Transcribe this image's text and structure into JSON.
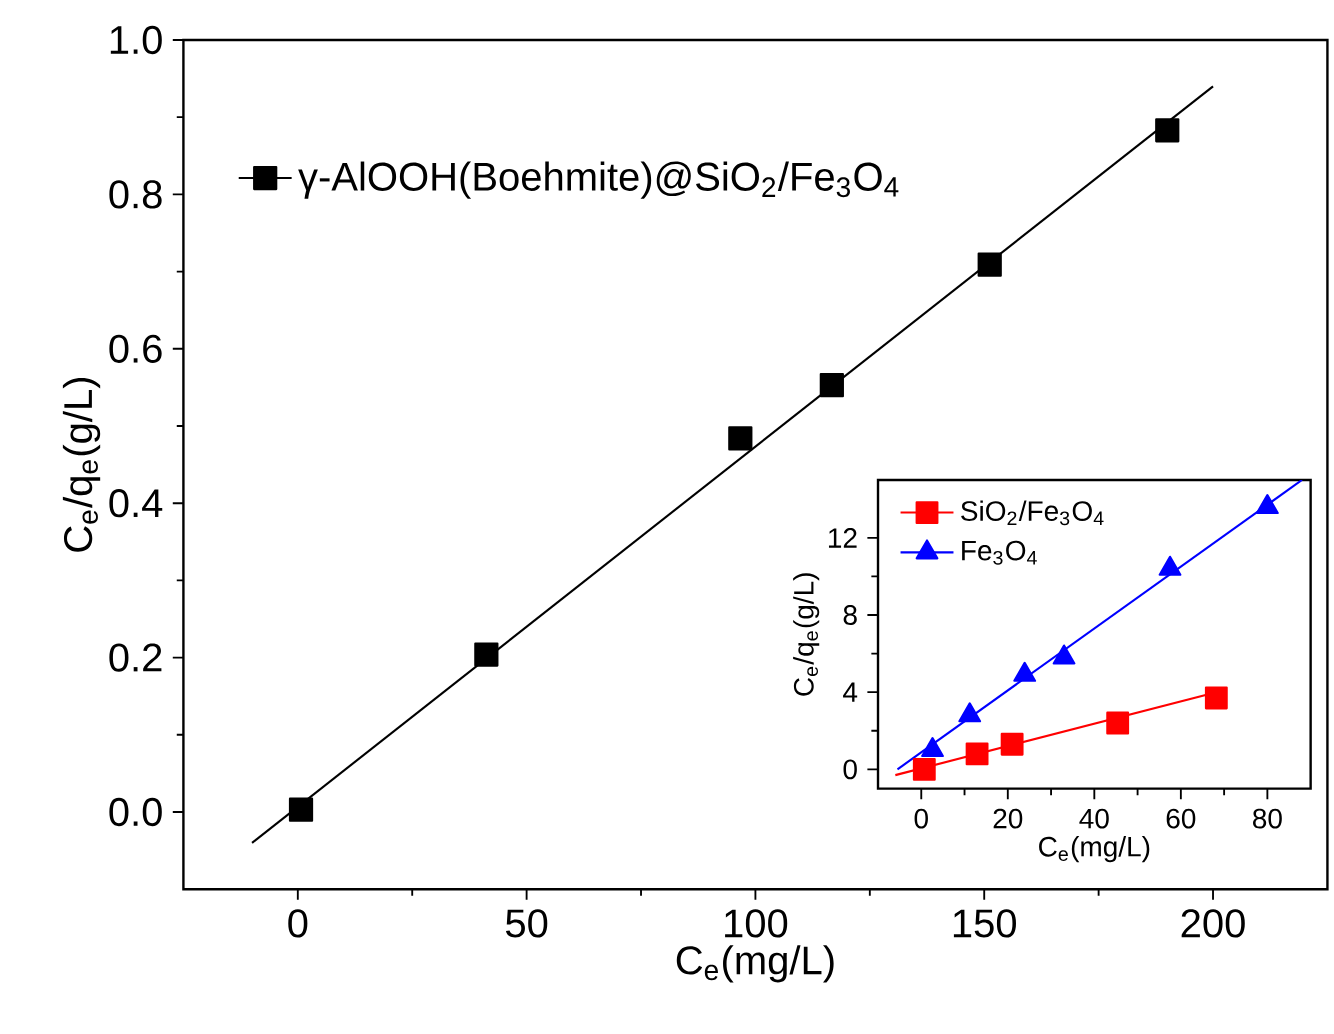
{
  "chart_data": [
    {
      "type": "scatter",
      "xlabel": "C$_{e}$(mg/L)",
      "ylabel": "C$_{e}$/q$_{e}$(g/L)",
      "xlim": [
        -25,
        225
      ],
      "ylim": [
        -0.1,
        1.0
      ],
      "xticks": [
        0,
        50,
        100,
        150,
        200
      ],
      "yticks": [
        {
          "value": 0,
          "label": "0.0"
        },
        0.2,
        0.4,
        0.6,
        0.8,
        {
          "value": 1,
          "label": "1.0"
        }
      ],
      "legend": "top left",
      "series": [
        {
          "name": "γ-AlOOH(Boehmite)@SiO$_{2}$/Fe$_{3}$O$_{4}$",
          "color": "#000000",
          "marker": "square",
          "x": [
            0.7,
            41.2,
            96.7,
            116.7,
            151.2,
            190
          ],
          "values": [
            0.003,
            0.204,
            0.484,
            0.553,
            0.709,
            0.883
          ]
        },
        {
          "type": "line",
          "color": "#000000",
          "marker": "none",
          "x": [
            -10,
            200
          ],
          "values": [
            -0.04,
            0.94
          ]
        }
      ]
    },
    {
      "type": "scatter",
      "xlabel": "C$_{e}$(mg/L)",
      "ylabel": "C$_{e}$/q$_{e}$(g/L)",
      "xlim": [
        -10,
        90
      ],
      "ylim": [
        -1,
        15
      ],
      "xticks": [
        0,
        20,
        40,
        60,
        80
      ],
      "yticks": [
        0,
        4,
        8,
        12
      ],
      "legend": "top left",
      "series": [
        {
          "name": "SiO$_{2}$/Fe$_{3}$O$_{4}$",
          "color": "#ff0000",
          "marker": "square",
          "x": [
            0.7,
            12.9,
            21,
            45.4,
            68.2
          ],
          "values": [
            0,
            0.8,
            1.3,
            2.4,
            3.7
          ]
        },
        {
          "name": "Fe$_{3}$O$_{4}$",
          "color": "#0000ff",
          "marker": "triangle",
          "x": [
            2.6,
            11.2,
            23.9,
            33,
            57.5,
            80
          ],
          "values": [
            1.0,
            2.8,
            4.9,
            5.8,
            10.4,
            13.6
          ]
        },
        {
          "type": "line",
          "color": "#ff0000",
          "marker": "none",
          "x": [
            -6,
            70
          ],
          "values": [
            -0.3,
            4.1
          ]
        },
        {
          "type": "line",
          "color": "#0000ff",
          "marker": "none",
          "x": [
            -5.5,
            88
          ],
          "values": [
            0,
            15
          ]
        }
      ]
    }
  ]
}
